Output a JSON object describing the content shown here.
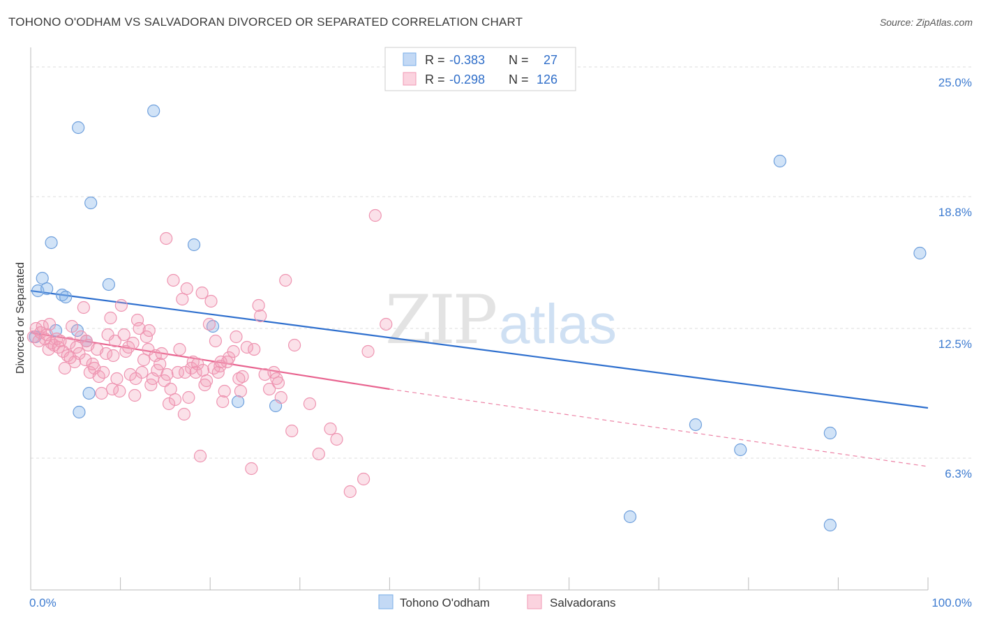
{
  "title": "TOHONO O'ODHAM VS SALVADORAN DIVORCED OR SEPARATED CORRELATION CHART",
  "source": "Source: ZipAtlas.com",
  "watermark": {
    "zip": "ZIP",
    "atlas": "atlas"
  },
  "colors": {
    "blue": "#7aaee8",
    "blue_line": "#2e6fce",
    "pink": "#f19ab5",
    "pink_line": "#e8638f",
    "axis_text": "#3d7bd0",
    "grid": "#dddddd"
  },
  "legend": {
    "rows": [
      {
        "r_label": "R =",
        "r_value": "-0.383",
        "n_label": "N =",
        "n_value": "27",
        "color": "blue"
      },
      {
        "r_label": "R =",
        "r_value": "-0.298",
        "n_label": "N =",
        "n_value": "126",
        "color": "pink"
      }
    ]
  },
  "bottom_legend": [
    "Tohono O'odham",
    "Salvadorans"
  ],
  "chart_data": {
    "type": "scatter",
    "xlabel": "",
    "ylabel": "Divorced or Separated",
    "xlim": [
      0,
      100
    ],
    "ylim": [
      0,
      25.6
    ],
    "x_tick_labels": [
      "0.0%",
      "100.0%"
    ],
    "y_ticks": [
      6.3,
      12.5,
      18.8,
      25.0
    ],
    "y_tick_labels": [
      "6.3%",
      "12.5%",
      "18.8%",
      "25.0%"
    ],
    "grid": "horizontal dashed",
    "legend_placement": "top-center",
    "series": [
      {
        "name": "Tohono O'odham",
        "color": "blue",
        "points": [
          [
            0.8,
            14.3
          ],
          [
            1.3,
            14.9
          ],
          [
            1.8,
            14.4
          ],
          [
            2.3,
            16.6
          ],
          [
            2.8,
            12.4
          ],
          [
            3.5,
            14.1
          ],
          [
            3.9,
            14.0
          ],
          [
            5.2,
            12.4
          ],
          [
            5.3,
            22.1
          ],
          [
            5.4,
            8.5
          ],
          [
            6.2,
            11.9
          ],
          [
            6.5,
            9.4
          ],
          [
            6.7,
            18.5
          ],
          [
            8.7,
            14.6
          ],
          [
            13.7,
            22.9
          ],
          [
            18.2,
            16.5
          ],
          [
            20.3,
            12.6
          ],
          [
            23.1,
            9.0
          ],
          [
            27.3,
            8.8
          ],
          [
            83.5,
            20.5
          ],
          [
            99.1,
            16.1
          ],
          [
            74.1,
            7.9
          ],
          [
            79.1,
            6.7
          ],
          [
            89.1,
            7.5
          ],
          [
            66.8,
            3.5
          ],
          [
            89.1,
            3.1
          ],
          [
            0.5,
            12.1
          ]
        ],
        "trend": {
          "x0": 0,
          "y0": 14.3,
          "x1": 100,
          "y1": 8.7
        }
      },
      {
        "name": "Salvadorans",
        "color": "pink",
        "points": [
          [
            0.3,
            12.1
          ],
          [
            0.6,
            12.5
          ],
          [
            0.9,
            11.9
          ],
          [
            1.1,
            12.3
          ],
          [
            1.3,
            12.6
          ],
          [
            1.6,
            12.0
          ],
          [
            1.8,
            12.2
          ],
          [
            2.0,
            11.5
          ],
          [
            2.3,
            11.8
          ],
          [
            2.6,
            11.7
          ],
          [
            2.9,
            12.0
          ],
          [
            3.1,
            11.6
          ],
          [
            3.3,
            11.9
          ],
          [
            3.6,
            11.4
          ],
          [
            3.8,
            10.6
          ],
          [
            4.1,
            11.2
          ],
          [
            4.3,
            11.8
          ],
          [
            4.6,
            12.6
          ],
          [
            4.9,
            10.9
          ],
          [
            5.1,
            11.6
          ],
          [
            5.4,
            11.3
          ],
          [
            5.6,
            12.1
          ],
          [
            5.9,
            13.5
          ],
          [
            6.1,
            11.0
          ],
          [
            6.4,
            11.7
          ],
          [
            6.6,
            10.4
          ],
          [
            6.9,
            10.8
          ],
          [
            7.1,
            10.6
          ],
          [
            7.4,
            11.5
          ],
          [
            7.6,
            10.2
          ],
          [
            7.9,
            9.4
          ],
          [
            8.1,
            10.4
          ],
          [
            8.4,
            11.3
          ],
          [
            8.6,
            12.2
          ],
          [
            8.9,
            13.0
          ],
          [
            9.1,
            9.6
          ],
          [
            9.4,
            11.9
          ],
          [
            9.6,
            10.1
          ],
          [
            9.9,
            9.5
          ],
          [
            10.1,
            13.6
          ],
          [
            10.4,
            12.2
          ],
          [
            10.6,
            11.4
          ],
          [
            10.9,
            11.6
          ],
          [
            11.1,
            10.3
          ],
          [
            11.4,
            11.8
          ],
          [
            11.6,
            9.3
          ],
          [
            11.9,
            12.9
          ],
          [
            12.1,
            12.5
          ],
          [
            12.4,
            10.4
          ],
          [
            12.6,
            11.0
          ],
          [
            12.9,
            12.1
          ],
          [
            13.1,
            11.5
          ],
          [
            13.4,
            9.8
          ],
          [
            13.6,
            10.1
          ],
          [
            13.9,
            11.2
          ],
          [
            14.1,
            10.5
          ],
          [
            14.4,
            10.8
          ],
          [
            14.6,
            11.3
          ],
          [
            14.9,
            10.0
          ],
          [
            15.1,
            16.8
          ],
          [
            15.4,
            8.9
          ],
          [
            15.6,
            9.6
          ],
          [
            15.9,
            14.8
          ],
          [
            16.1,
            9.1
          ],
          [
            16.4,
            10.4
          ],
          [
            16.6,
            11.5
          ],
          [
            16.9,
            13.9
          ],
          [
            17.1,
            8.4
          ],
          [
            17.4,
            14.4
          ],
          [
            17.6,
            9.2
          ],
          [
            17.9,
            10.6
          ],
          [
            18.1,
            10.9
          ],
          [
            18.4,
            10.4
          ],
          [
            18.6,
            10.8
          ],
          [
            18.9,
            6.4
          ],
          [
            19.1,
            14.2
          ],
          [
            19.4,
            9.8
          ],
          [
            19.6,
            10.0
          ],
          [
            19.9,
            12.7
          ],
          [
            20.1,
            13.8
          ],
          [
            20.4,
            10.6
          ],
          [
            20.6,
            11.9
          ],
          [
            20.9,
            10.4
          ],
          [
            21.1,
            10.7
          ],
          [
            21.4,
            9.0
          ],
          [
            21.6,
            9.5
          ],
          [
            21.9,
            10.9
          ],
          [
            22.1,
            11.1
          ],
          [
            22.6,
            11.4
          ],
          [
            22.9,
            12.1
          ],
          [
            23.4,
            9.5
          ],
          [
            23.6,
            10.2
          ],
          [
            24.1,
            11.6
          ],
          [
            24.6,
            5.8
          ],
          [
            24.9,
            11.5
          ],
          [
            25.4,
            13.6
          ],
          [
            25.6,
            13.1
          ],
          [
            26.1,
            10.3
          ],
          [
            26.6,
            9.6
          ],
          [
            27.1,
            10.4
          ],
          [
            27.4,
            10.1
          ],
          [
            27.6,
            9.9
          ],
          [
            27.9,
            9.2
          ],
          [
            28.4,
            14.8
          ],
          [
            29.1,
            7.6
          ],
          [
            29.4,
            11.7
          ],
          [
            31.1,
            8.9
          ],
          [
            32.1,
            6.5
          ],
          [
            33.4,
            7.7
          ],
          [
            34.1,
            7.2
          ],
          [
            35.6,
            4.7
          ],
          [
            37.1,
            5.3
          ],
          [
            37.6,
            11.4
          ],
          [
            38.4,
            17.9
          ],
          [
            39.6,
            12.7
          ],
          [
            2.1,
            12.7
          ],
          [
            4.4,
            11.1
          ],
          [
            6.2,
            11.9
          ],
          [
            9.2,
            11.2
          ],
          [
            11.7,
            10.1
          ],
          [
            13.2,
            12.4
          ],
          [
            15.2,
            10.3
          ],
          [
            17.2,
            10.4
          ],
          [
            19.2,
            10.5
          ],
          [
            21.2,
            10.9
          ],
          [
            23.2,
            10.1
          ]
        ],
        "trend": {
          "x0": 0,
          "y0": 12.3,
          "x1": 40,
          "y1": 9.6
        },
        "trend_extension": {
          "x0": 40,
          "y0": 9.6,
          "x1": 100,
          "y1": 5.9
        }
      }
    ]
  }
}
